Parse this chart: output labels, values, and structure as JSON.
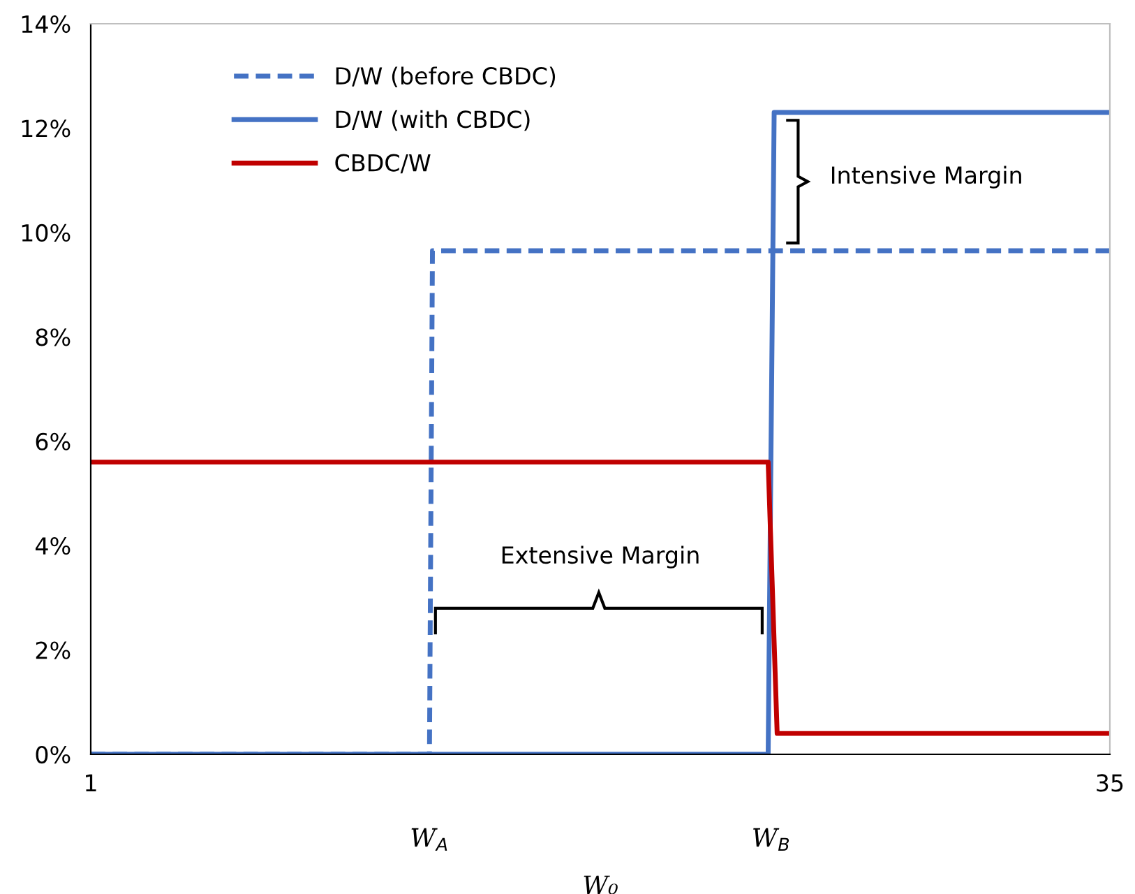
{
  "chart_data": {
    "type": "line",
    "xlabel": "W₀",
    "xlim": [
      1,
      35
    ],
    "xticks": [
      1,
      35
    ],
    "ylim": [
      0,
      14
    ],
    "yticks": [
      {
        "value": 0,
        "label": "0%"
      },
      {
        "value": 2,
        "label": "2%"
      },
      {
        "value": 4,
        "label": "4%"
      },
      {
        "value": 6,
        "label": "6%"
      },
      {
        "value": 8,
        "label": "8%"
      },
      {
        "value": 10,
        "label": "10%"
      },
      {
        "value": 12,
        "label": "12%"
      },
      {
        "value": 14,
        "label": "14%"
      }
    ],
    "series": [
      {
        "name": "D/W (before CBDC)",
        "color": "#4472c4",
        "line_style": "dashed",
        "x": [
          1,
          12.3,
          12.4,
          35
        ],
        "values": [
          0,
          0,
          9.65,
          9.65
        ]
      },
      {
        "name": "D/W (with CBDC)",
        "color": "#4472c4",
        "line_style": "solid",
        "x": [
          1,
          23.6,
          23.8,
          35
        ],
        "values": [
          0,
          0,
          12.3,
          12.3
        ]
      },
      {
        "name": "CBDC/W",
        "color": "#c00000",
        "line_style": "solid",
        "x": [
          1,
          23.6,
          23.9,
          35
        ],
        "values": [
          5.6,
          5.6,
          0.4,
          0.4
        ]
      }
    ],
    "annotations": [
      {
        "text": "W$_{A}$",
        "x": 12.3,
        "y": 0
      },
      {
        "text": "W$_{B}$",
        "x": 23.7,
        "y": 0
      },
      "Extensive Margin",
      "Intensive Margin"
    ],
    "grid": false,
    "legend": "top left"
  }
}
